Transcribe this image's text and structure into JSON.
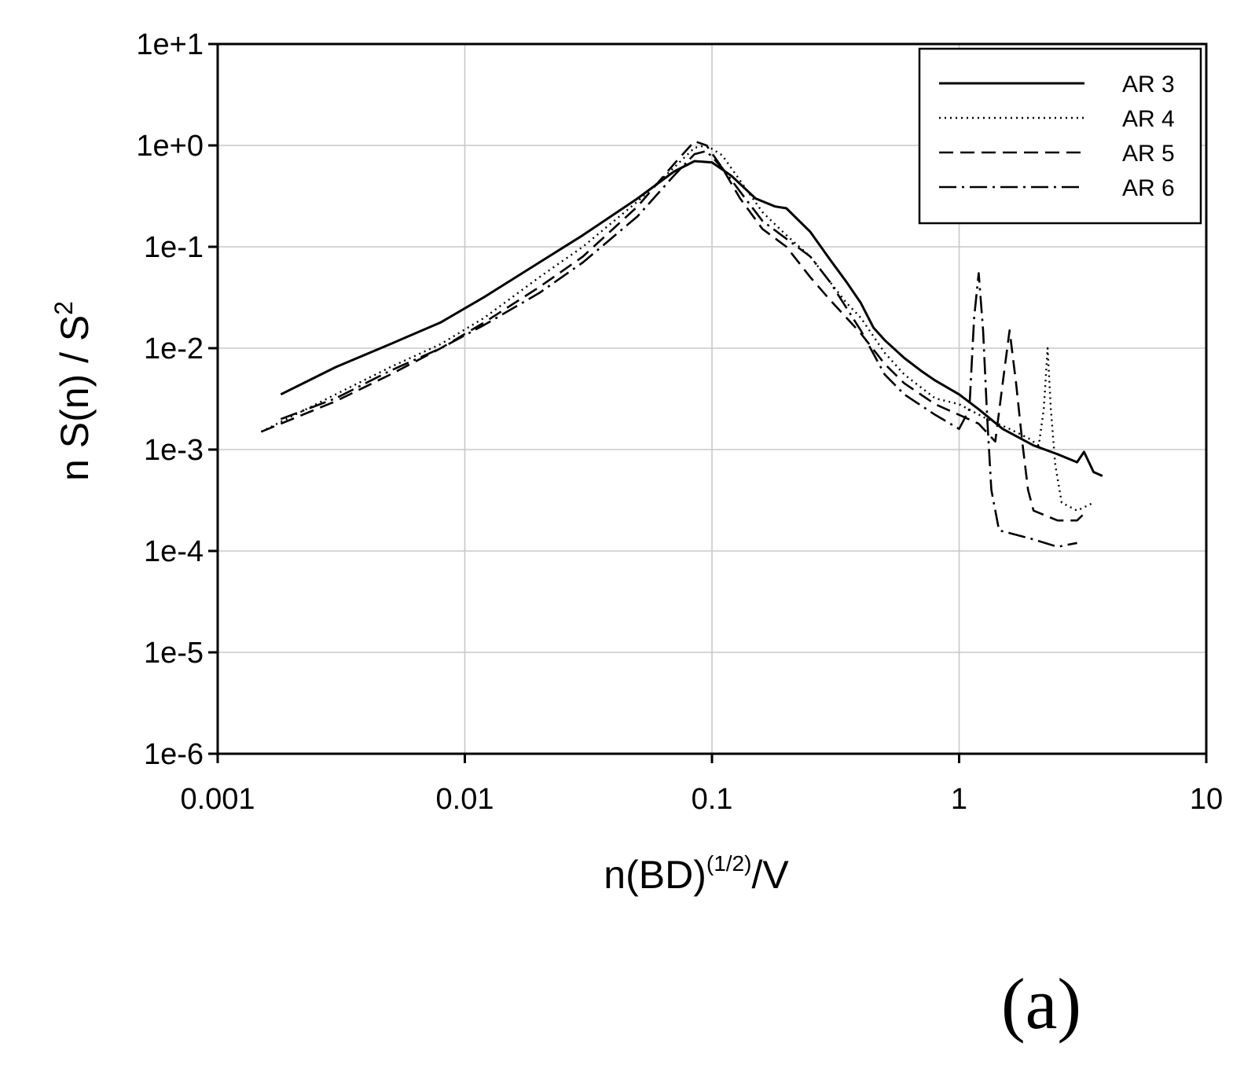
{
  "panel_label": "(a)",
  "chart_data": {
    "type": "line",
    "title": "",
    "xlabel": "n(BD)",
    "xlabel_superscript": "(1/2)",
    "xlabel_suffix": "/V",
    "ylabel": "n S(n) / S",
    "ylabel_superscript": "2",
    "xscale": "log",
    "yscale": "log",
    "xlim": [
      0.001,
      10
    ],
    "ylim": [
      1e-06,
      10
    ],
    "grid": true,
    "legend_position": "top-right",
    "x_tick_labels": [
      {
        "value": 0.001,
        "label": "0.001"
      },
      {
        "value": 0.01,
        "label": "0.01"
      },
      {
        "value": 0.1,
        "label": "0.1"
      },
      {
        "value": 1,
        "label": "1"
      },
      {
        "value": 10,
        "label": "10"
      }
    ],
    "y_tick_labels": [
      {
        "value": 10,
        "label": "1e+1"
      },
      {
        "value": 1,
        "label": "1e+0"
      },
      {
        "value": 0.1,
        "label": "1e-1"
      },
      {
        "value": 0.01,
        "label": "1e-2"
      },
      {
        "value": 0.001,
        "label": "1e-3"
      },
      {
        "value": 0.0001,
        "label": "1e-4"
      },
      {
        "value": 1e-05,
        "label": "1e-5"
      },
      {
        "value": 1e-06,
        "label": "1e-6"
      }
    ],
    "series": [
      {
        "name": "AR 3",
        "line_style": "solid",
        "points": [
          [
            0.0018,
            0.0035
          ],
          [
            0.003,
            0.0065
          ],
          [
            0.005,
            0.011
          ],
          [
            0.008,
            0.018
          ],
          [
            0.012,
            0.032
          ],
          [
            0.02,
            0.07
          ],
          [
            0.03,
            0.13
          ],
          [
            0.05,
            0.3
          ],
          [
            0.07,
            0.55
          ],
          [
            0.085,
            0.7
          ],
          [
            0.1,
            0.68
          ],
          [
            0.12,
            0.5
          ],
          [
            0.15,
            0.3
          ],
          [
            0.18,
            0.25
          ],
          [
            0.2,
            0.24
          ],
          [
            0.25,
            0.14
          ],
          [
            0.3,
            0.075
          ],
          [
            0.35,
            0.045
          ],
          [
            0.4,
            0.028
          ],
          [
            0.45,
            0.016
          ],
          [
            0.5,
            0.012
          ],
          [
            0.6,
            0.008
          ],
          [
            0.7,
            0.006
          ],
          [
            0.8,
            0.0048
          ],
          [
            1.0,
            0.0035
          ],
          [
            1.2,
            0.0025
          ],
          [
            1.5,
            0.0016
          ],
          [
            2.0,
            0.0011
          ],
          [
            2.5,
            0.0009
          ],
          [
            3.0,
            0.00075
          ],
          [
            3.2,
            0.00095
          ],
          [
            3.5,
            0.0006
          ],
          [
            3.8,
            0.00055
          ]
        ]
      },
      {
        "name": "AR 4",
        "line_style": "dotted",
        "points": [
          [
            0.0015,
            0.0015
          ],
          [
            0.003,
            0.0035
          ],
          [
            0.005,
            0.0065
          ],
          [
            0.008,
            0.011
          ],
          [
            0.012,
            0.02
          ],
          [
            0.02,
            0.05
          ],
          [
            0.03,
            0.1
          ],
          [
            0.05,
            0.28
          ],
          [
            0.07,
            0.6
          ],
          [
            0.085,
            0.95
          ],
          [
            0.095,
            1.0
          ],
          [
            0.11,
            0.8
          ],
          [
            0.13,
            0.45
          ],
          [
            0.16,
            0.22
          ],
          [
            0.2,
            0.13
          ],
          [
            0.25,
            0.08
          ],
          [
            0.3,
            0.045
          ],
          [
            0.35,
            0.028
          ],
          [
            0.4,
            0.02
          ],
          [
            0.5,
            0.009
          ],
          [
            0.6,
            0.0055
          ],
          [
            0.8,
            0.0032
          ],
          [
            1.0,
            0.0028
          ],
          [
            1.3,
            0.002
          ],
          [
            1.6,
            0.0016
          ],
          [
            1.9,
            0.0013
          ],
          [
            2.1,
            0.0011
          ],
          [
            2.2,
            0.0025
          ],
          [
            2.28,
            0.01
          ],
          [
            2.35,
            0.0025
          ],
          [
            2.45,
            0.0007
          ],
          [
            2.6,
            0.0003
          ],
          [
            3.0,
            0.00025
          ],
          [
            3.5,
            0.0003
          ]
        ]
      },
      {
        "name": "AR 5",
        "line_style": "dashed",
        "points": [
          [
            0.0015,
            0.0015
          ],
          [
            0.003,
            0.003
          ],
          [
            0.005,
            0.0055
          ],
          [
            0.008,
            0.01
          ],
          [
            0.012,
            0.018
          ],
          [
            0.02,
            0.04
          ],
          [
            0.03,
            0.08
          ],
          [
            0.05,
            0.25
          ],
          [
            0.07,
            0.65
          ],
          [
            0.085,
            1.1
          ],
          [
            0.095,
            1.0
          ],
          [
            0.11,
            0.6
          ],
          [
            0.13,
            0.3
          ],
          [
            0.16,
            0.15
          ],
          [
            0.2,
            0.1
          ],
          [
            0.25,
            0.05
          ],
          [
            0.3,
            0.03
          ],
          [
            0.35,
            0.02
          ],
          [
            0.4,
            0.014
          ],
          [
            0.5,
            0.007
          ],
          [
            0.6,
            0.0045
          ],
          [
            0.8,
            0.0028
          ],
          [
            1.0,
            0.0022
          ],
          [
            1.2,
            0.0018
          ],
          [
            1.4,
            0.0012
          ],
          [
            1.5,
            0.0045
          ],
          [
            1.6,
            0.015
          ],
          [
            1.7,
            0.0045
          ],
          [
            1.8,
            0.0012
          ],
          [
            1.9,
            0.0004
          ],
          [
            2.0,
            0.00025
          ],
          [
            2.5,
            0.0002
          ],
          [
            3.0,
            0.0002
          ],
          [
            3.3,
            0.00025
          ]
        ]
      },
      {
        "name": "AR 6",
        "line_style": "dashdot",
        "points": [
          [
            0.0018,
            0.002
          ],
          [
            0.003,
            0.0032
          ],
          [
            0.005,
            0.006
          ],
          [
            0.008,
            0.01
          ],
          [
            0.012,
            0.017
          ],
          [
            0.02,
            0.035
          ],
          [
            0.03,
            0.07
          ],
          [
            0.05,
            0.2
          ],
          [
            0.07,
            0.5
          ],
          [
            0.085,
            0.82
          ],
          [
            0.095,
            0.88
          ],
          [
            0.11,
            0.6
          ],
          [
            0.13,
            0.35
          ],
          [
            0.16,
            0.18
          ],
          [
            0.2,
            0.12
          ],
          [
            0.25,
            0.08
          ],
          [
            0.3,
            0.045
          ],
          [
            0.35,
            0.025
          ],
          [
            0.4,
            0.015
          ],
          [
            0.5,
            0.0055
          ],
          [
            0.6,
            0.0035
          ],
          [
            0.8,
            0.0022
          ],
          [
            1.0,
            0.0016
          ],
          [
            1.1,
            0.0025
          ],
          [
            1.15,
            0.02
          ],
          [
            1.2,
            0.055
          ],
          [
            1.25,
            0.015
          ],
          [
            1.3,
            0.002
          ],
          [
            1.35,
            0.0004
          ],
          [
            1.45,
            0.00016
          ],
          [
            2.0,
            0.00013
          ],
          [
            2.5,
            0.00011
          ],
          [
            3.0,
            0.00012
          ]
        ]
      }
    ]
  }
}
